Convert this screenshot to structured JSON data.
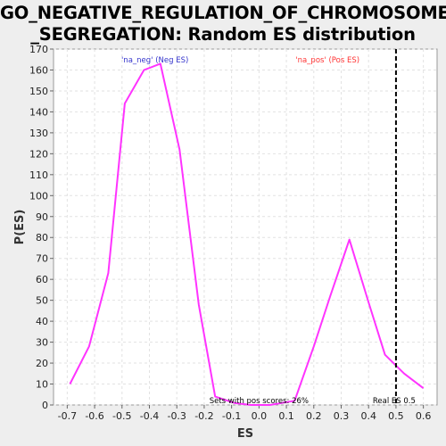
{
  "title": {
    "line1": "GO_NEGATIVE_REGULATION_OF_CHROMOSOME",
    "line2": "_SEGREGATION: Random ES distribution"
  },
  "chart_data": {
    "type": "line",
    "xlabel": "ES",
    "ylabel": "P(ES)",
    "xlim": [
      -0.75,
      0.65
    ],
    "ylim": [
      0,
      170
    ],
    "xticks": [
      -0.7,
      -0.6,
      -0.5,
      -0.4,
      -0.3,
      -0.2,
      -0.1,
      0.0,
      0.1,
      0.2,
      0.3,
      0.4,
      0.5,
      0.6
    ],
    "xtick_labels": [
      "-0.7",
      "-0.6",
      "-0.5",
      "-0.4",
      "-0.3",
      "-0.2",
      "-0.1",
      "0.0",
      "0.1",
      "0.2",
      "0.3",
      "0.4",
      "0.5",
      "0.6"
    ],
    "yticks": [
      0,
      10,
      20,
      30,
      40,
      50,
      60,
      70,
      80,
      90,
      100,
      110,
      120,
      130,
      140,
      150,
      160,
      170
    ],
    "grid": true,
    "series": [
      {
        "color": "#ff33ff",
        "x": [
          -0.69,
          -0.62,
          -0.55,
          -0.49,
          -0.42,
          -0.36,
          -0.29,
          -0.22,
          -0.16,
          -0.09,
          -0.03,
          0.04,
          0.13,
          0.2,
          0.26,
          0.33,
          0.4,
          0.46,
          0.53,
          0.6
        ],
        "y": [
          10,
          28,
          63,
          144,
          160,
          163,
          122,
          48,
          4,
          1,
          0,
          0,
          2,
          28,
          52,
          79,
          49,
          24,
          15,
          8
        ]
      }
    ],
    "reference_line": {
      "x": 0.5,
      "label": "Real ES 0.5",
      "color": "#000000",
      "style": "dashed"
    },
    "annotations": [
      {
        "text": "'na_neg' (Neg ES)",
        "color": "#3333cc"
      },
      {
        "text": "'na_pos' (Pos ES)",
        "color": "#ff3333"
      },
      {
        "text": "Sets with pos scores: 26%",
        "color": "#000000"
      }
    ]
  }
}
